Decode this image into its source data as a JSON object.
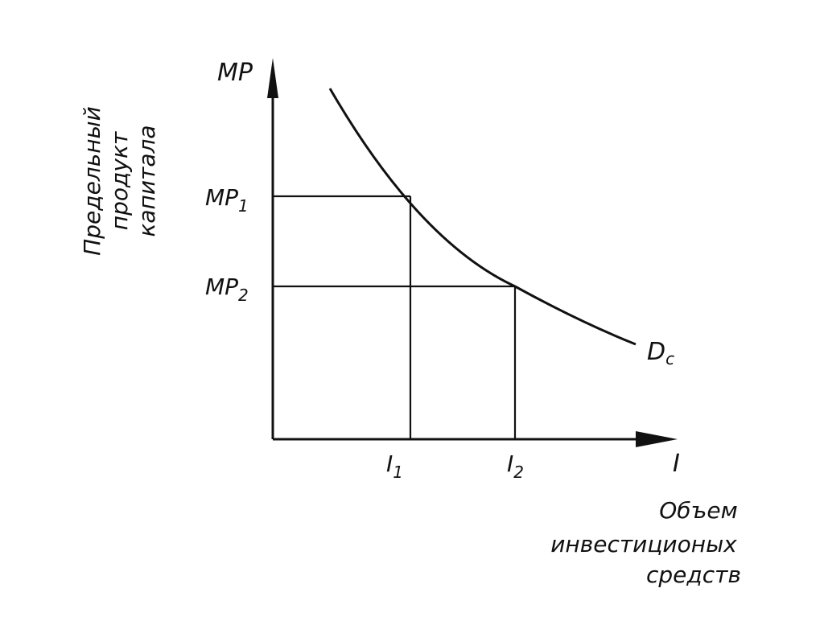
{
  "diagram": {
    "y_axis_symbol": "MP",
    "x_axis_symbol": "I",
    "y_axis_title_lines": [
      "Предельный",
      "продукт",
      "капитала"
    ],
    "x_axis_title_lines": [
      "Объем",
      "инвестиционых",
      "средств"
    ],
    "y_ticks": [
      {
        "base": "MP",
        "sub": "1"
      },
      {
        "base": "MP",
        "sub": "2"
      }
    ],
    "x_ticks": [
      {
        "base": "I",
        "sub": "1"
      },
      {
        "base": "I",
        "sub": "2"
      }
    ],
    "curve_label": {
      "base": "D",
      "sub": "c"
    }
  }
}
